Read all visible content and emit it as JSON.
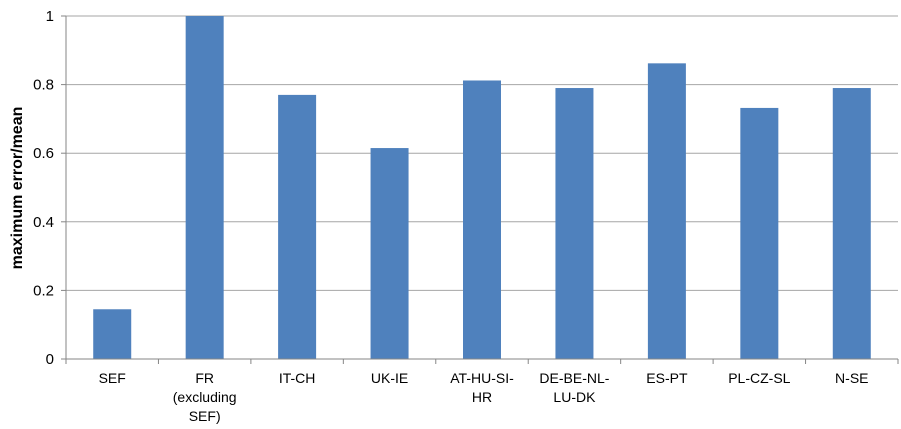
{
  "chart_data": {
    "type": "bar",
    "title": "",
    "xlabel": "",
    "ylabel": "maximum error/mean",
    "ylim": [
      0,
      1
    ],
    "yticks": [
      "0",
      "0.2",
      "0.4",
      "0.6",
      "0.8",
      "1"
    ],
    "grid": true,
    "bar_color": "#4f81bd",
    "categories": [
      [
        "SEF"
      ],
      [
        "FR",
        "(excluding",
        "SEF)"
      ],
      [
        "IT-CH"
      ],
      [
        "UK-IE"
      ],
      [
        "AT-HU-SI-",
        "HR"
      ],
      [
        "DE-BE-NL-",
        "LU-DK"
      ],
      [
        "ES-PT"
      ],
      [
        "PL-CZ-SL"
      ],
      [
        "N-SE"
      ]
    ],
    "values": [
      0.145,
      1.0,
      0.77,
      0.615,
      0.812,
      0.79,
      0.862,
      0.732,
      0.79
    ]
  }
}
